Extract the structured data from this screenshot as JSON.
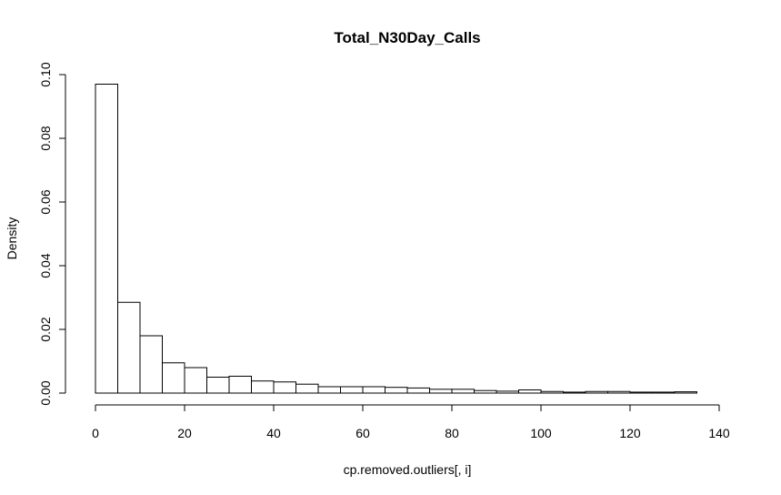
{
  "chart_data": {
    "type": "bar",
    "title": "Total_N30Day_Calls",
    "xlabel": "cp.removed.outliers[, i]",
    "ylabel": "Density",
    "bin_width": 5,
    "bin_start": 0,
    "values": [
      0.097,
      0.0285,
      0.018,
      0.0095,
      0.008,
      0.005,
      0.0053,
      0.0038,
      0.0035,
      0.0028,
      0.002,
      0.002,
      0.002,
      0.0018,
      0.0016,
      0.0012,
      0.0012,
      0.0008,
      0.0006,
      0.001,
      0.0005,
      0.0003,
      0.0005,
      0.0005,
      0.0003,
      0.0003,
      0.0004
    ],
    "xlim": [
      0,
      140
    ],
    "ylim": [
      0,
      0.1
    ],
    "x_ticks": [
      0,
      20,
      40,
      60,
      80,
      100,
      120,
      140
    ],
    "x_tick_labels": [
      "0",
      "20",
      "40",
      "60",
      "80",
      "100",
      "120",
      "140"
    ],
    "y_ticks": [
      0,
      0.02,
      0.04,
      0.06,
      0.08,
      0.1
    ],
    "y_tick_labels": [
      "0.00",
      "0.02",
      "0.04",
      "0.06",
      "0.08",
      "0.10"
    ],
    "grid": false,
    "legend": "none"
  }
}
